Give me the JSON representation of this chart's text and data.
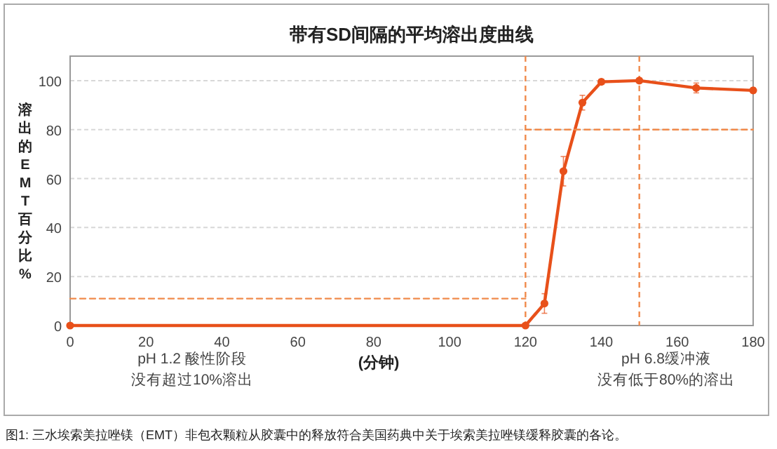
{
  "chart_data": {
    "type": "line",
    "title": "带有SD间隔的平均溶出度曲线",
    "xlabel": "(分钟)",
    "ylabel": "溶出的EMT百分比%",
    "x": [
      0,
      120,
      125,
      130,
      135,
      140,
      150,
      165,
      180
    ],
    "series": [
      {
        "color": "#e8501a",
        "values": [
          0,
          0,
          9,
          63,
          91,
          99.5,
          100,
          97,
          96
        ],
        "errors": [
          null,
          null,
          4,
          6,
          3,
          1,
          1,
          2,
          1
        ],
        "marker": "circle"
      },
      {
        "type": "line",
        "x": [
          0,
          120
        ],
        "values": [
          11,
          11
        ],
        "color": "#f08a4b",
        "line_style": "dashed",
        "marker": "none"
      },
      {
        "type": "line",
        "x": [
          120,
          180
        ],
        "values": [
          80,
          80
        ],
        "color": "#f08a4b",
        "line_style": "dashed",
        "marker": "none"
      }
    ],
    "ref_lines": [
      {
        "axis": "x",
        "value": 120,
        "color": "#f08a4b",
        "line_style": "dashed"
      },
      {
        "axis": "x",
        "value": 150,
        "color": "#f08a4b",
        "line_style": "dashed"
      }
    ],
    "xlim": [
      0,
      180
    ],
    "ylim": [
      0,
      110
    ],
    "xticks": [
      0,
      20,
      40,
      60,
      80,
      100,
      120,
      140,
      160,
      180
    ],
    "yticks": [
      0,
      20,
      40,
      60,
      80,
      100
    ],
    "grid": "y",
    "annotations": [
      "pH 1.2 酸性阶段",
      "没有超过10%溶出",
      "pH 6.8缓冲液",
      "没有低于80%的溶出",
      "图1: 三水埃索美拉唑镁（EMT）非包衣颗粒从胶囊中的释放符合美国药典中关于埃索美拉唑镁缓释胶囊的各论。"
    ]
  }
}
